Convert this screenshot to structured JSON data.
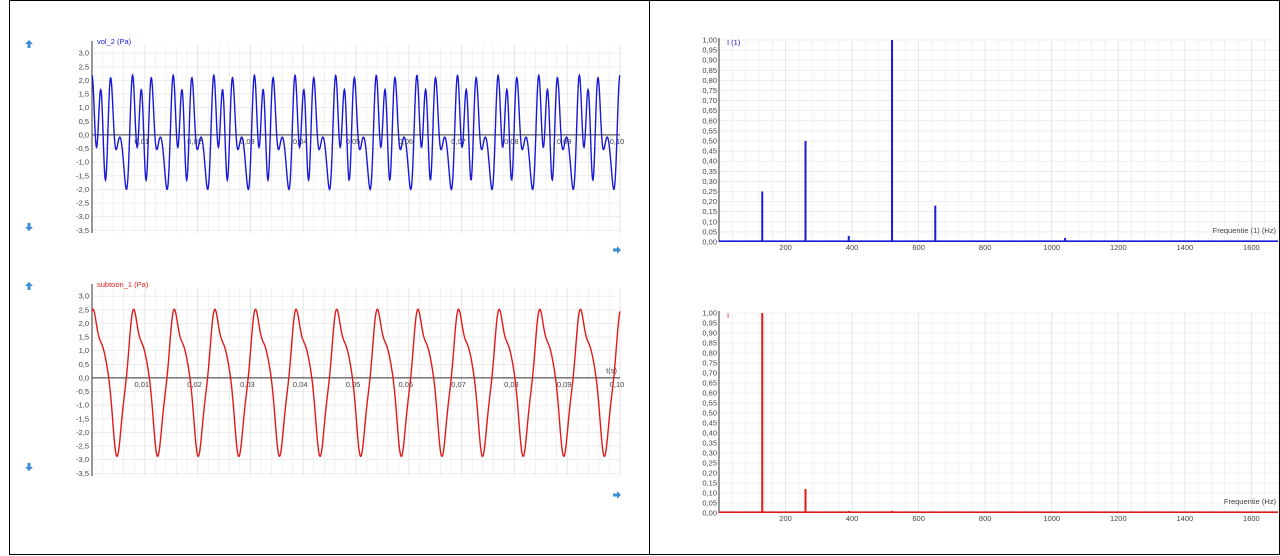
{
  "colors": {
    "blue": "#1a1ad6",
    "red": "#e01a1a",
    "grid": "#e3e3e3",
    "arrow": "#3a8fd8"
  },
  "chart_data": [
    {
      "type": "line",
      "series": [
        {
          "name": "vol_2 (Pa)",
          "color": "blue"
        }
      ],
      "ylabel": "vol_2 (Pa)",
      "xlabel": "",
      "xlim": [
        0,
        0.1
      ],
      "ylim": [
        -3.6,
        3.3
      ],
      "yticks": [
        "3,0",
        "2,5",
        "2,0",
        "1,5",
        "1,0",
        "0,5",
        "0,0",
        "-0,5",
        "-1,0",
        "-1,5",
        "-2,0",
        "-2,5",
        "-3,0",
        "-3,5"
      ],
      "xticks": [
        "0,01",
        "0,02",
        "0,03",
        "0,04",
        "0,05",
        "0,06",
        "0,07",
        "0,08",
        "0,09",
        "0,10"
      ],
      "waveform": {
        "harmonics": [
          {
            "f": 130,
            "a": 0.6,
            "p": 0.0
          },
          {
            "f": 260,
            "a": 0.9,
            "p": 1.1
          },
          {
            "f": 390,
            "a": 0.1,
            "p": 0.4
          },
          {
            "f": 520,
            "a": 1.2,
            "p": 2.3
          },
          {
            "f": 650,
            "a": 0.45,
            "p": 0.9
          }
        ],
        "offset": 0.1
      },
      "grid": true
    },
    {
      "type": "line",
      "series": [
        {
          "name": "subtoon_1 (Pa)",
          "color": "red"
        }
      ],
      "ylabel": "subtoon_1 (Pa)",
      "xlabel": "t(s)",
      "xlim": [
        0,
        0.1
      ],
      "ylim": [
        -3.6,
        3.3
      ],
      "yticks": [
        "3,0",
        "2,5",
        "2,0",
        "1,5",
        "1,0",
        "0,5",
        "0,0",
        "-0,5",
        "-1,0",
        "-1,5",
        "-2,0",
        "-2,5",
        "-3,0",
        "-3,5"
      ],
      "xticks": [
        "0,01",
        "0,02",
        "0,03",
        "0,04",
        "0,05",
        "0,06",
        "0,07",
        "0,08",
        "0,09",
        "0,10"
      ],
      "waveform": {
        "harmonics": [
          {
            "f": 130,
            "a": 2.3,
            "p": 0.9
          },
          {
            "f": 260,
            "a": 0.55,
            "p": 2.6
          },
          {
            "f": 390,
            "a": 0.22,
            "p": 0.5
          },
          {
            "f": 520,
            "a": 0.15,
            "p": 1.7
          }
        ],
        "offset": 0.1
      },
      "grid": true
    },
    {
      "type": "bar",
      "series": [
        {
          "name": "I (1)",
          "color": "blue"
        }
      ],
      "ylabel": "I (1)",
      "xlabel": "Frequentie (1) (Hz)",
      "xlim": [
        0,
        1680
      ],
      "ylim": [
        0,
        1.0
      ],
      "yticks": [
        "1,00",
        "0,95",
        "0,90",
        "0,85",
        "0,80",
        "0,75",
        "0,70",
        "0,65",
        "0,60",
        "0,55",
        "0,50",
        "0,45",
        "0,40",
        "0,35",
        "0,30",
        "0,25",
        "0,20",
        "0,15",
        "0,10",
        "0,05",
        "0,00"
      ],
      "xticks": [
        "200",
        "400",
        "600",
        "800",
        "1000",
        "1200",
        "1400",
        "1600"
      ],
      "x": [
        130,
        260,
        390,
        520,
        650,
        1040
      ],
      "values": [
        0.25,
        0.5,
        0.03,
        1.0,
        0.18,
        0.02
      ],
      "grid": true
    },
    {
      "type": "bar",
      "series": [
        {
          "name": "I",
          "color": "red"
        }
      ],
      "ylabel": "I",
      "xlabel": "Frequentie (Hz)",
      "xlim": [
        0,
        1680
      ],
      "ylim": [
        0,
        1.0
      ],
      "yticks": [
        "1,00",
        "0,95",
        "0,90",
        "0,85",
        "0,80",
        "0,75",
        "0,70",
        "0,65",
        "0,60",
        "0,55",
        "0,50",
        "0,45",
        "0,40",
        "0,35",
        "0,30",
        "0,25",
        "0,20",
        "0,15",
        "0,10",
        "0,05",
        "0,00"
      ],
      "xticks": [
        "200",
        "400",
        "600",
        "800",
        "1000",
        "1200",
        "1400",
        "1600"
      ],
      "x": [
        130,
        260,
        390,
        520
      ],
      "values": [
        1.0,
        0.12,
        0.01,
        0.01
      ],
      "grid": true
    }
  ]
}
